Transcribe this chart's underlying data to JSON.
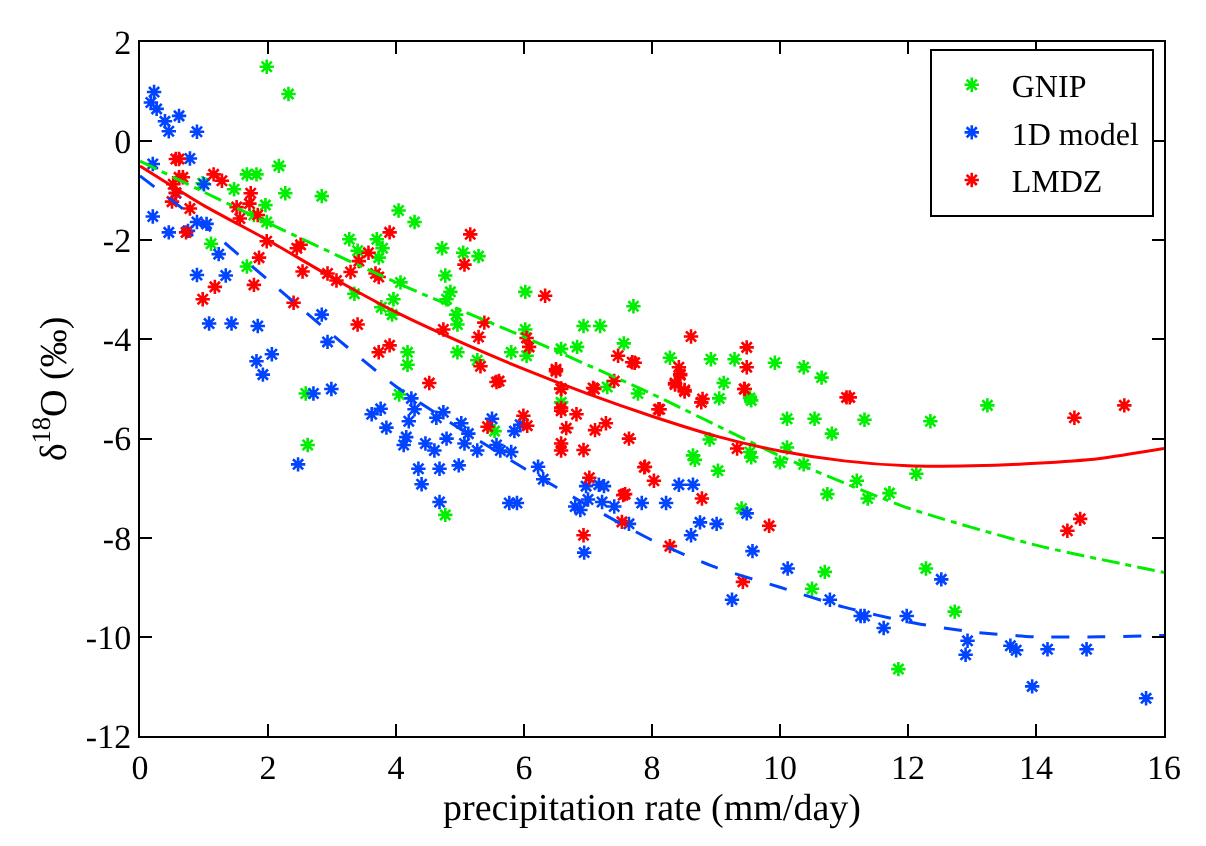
{
  "chart_data": {
    "type": "scatter",
    "xlabel": "precipitation rate (mm/day)",
    "ylabel": "δ$^{18}$O (‰)",
    "xlim": [
      0,
      16
    ],
    "ylim": [
      -12,
      2
    ],
    "xticks": [
      0,
      2,
      4,
      6,
      8,
      10,
      12,
      14,
      16
    ],
    "yticks": [
      -12,
      -10,
      -8,
      -6,
      -4,
      -2,
      0,
      2
    ],
    "legend": "top right",
    "series": [
      {
        "name": "GNIP",
        "color": "#00ee00",
        "marker": "cross",
        "x": [
          1.98,
          2.32,
          2.17,
          1.67,
          1.82,
          0.98,
          1.47,
          1.96,
          2.27,
          2.84,
          1.78,
          1.98,
          1.11,
          1.67,
          3.27,
          3.4,
          3.7,
          3.79,
          3.73,
          4.04,
          4.29,
          3.35,
          3.96,
          4.07,
          3.77,
          3.94,
          4.72,
          5.05,
          5.29,
          4.77,
          4.85,
          4.79,
          4.94,
          4.96,
          6.02,
          6.02,
          5.8,
          4.96,
          4.18,
          4.18,
          4.05,
          5.27,
          6.04,
          6.58,
          6.83,
          6.93,
          7.19,
          7.56,
          7.71,
          7.78,
          2.59,
          6.58,
          2.62,
          4.77,
          5.54,
          7.3,
          8.28,
          8.92,
          9.29,
          9.12,
          10.37,
          10.65,
          9.53,
          9.92,
          9.05,
          9.55,
          10.11,
          10.54,
          10.81,
          11.32,
          12.35,
          13.24,
          8.9,
          8.64,
          8.67,
          9.53,
          9.55,
          10.11,
          10.0,
          10.37,
          9.03,
          11.2,
          12.13,
          10.74,
          11.37,
          11.71,
          9.4,
          10.7,
          10.5,
          12.28,
          12.73,
          11.85
        ],
        "values": [
          1.5,
          0.95,
          -0.5,
          -0.67,
          -0.67,
          -0.85,
          -0.97,
          -1.29,
          -1.05,
          -1.11,
          -1.49,
          -1.63,
          -2.07,
          -2.53,
          -1.98,
          -2.21,
          -1.98,
          -2.16,
          -2.35,
          -1.4,
          -1.63,
          -3.08,
          -3.19,
          -2.85,
          -3.35,
          -3.5,
          -2.16,
          -2.25,
          -2.32,
          -2.71,
          -3.04,
          -3.19,
          -3.5,
          -3.7,
          -3.04,
          -3.8,
          -4.26,
          -4.26,
          -4.26,
          -4.51,
          -5.11,
          -4.42,
          -4.33,
          -4.19,
          -4.15,
          -3.73,
          -3.73,
          -4.08,
          -3.33,
          -5.09,
          -5.09,
          -5.27,
          -6.13,
          -7.54,
          -5.85,
          -4.96,
          -4.37,
          -4.4,
          -4.4,
          -4.88,
          -4.56,
          -4.77,
          -5.18,
          -4.47,
          -5.19,
          -5.23,
          -5.6,
          -5.6,
          -5.9,
          -5.62,
          -5.65,
          -5.33,
          -6.02,
          -6.34,
          -6.43,
          -6.27,
          -6.38,
          -6.18,
          -6.48,
          -6.52,
          -6.65,
          -6.85,
          -6.71,
          -7.12,
          -7.21,
          -7.1,
          -7.41,
          -8.69,
          -9.03,
          -8.62,
          -9.49,
          -10.65
        ]
      },
      {
        "name": "1D model",
        "color": "#0044ff",
        "marker": "cross",
        "x": [
          0.17,
          0.22,
          0.26,
          0.39,
          0.45,
          0.61,
          0.89,
          0.2,
          0.78,
          1.0,
          0.2,
          0.45,
          0.75,
          0.89,
          1.04,
          1.23,
          0.89,
          1.34,
          1.08,
          1.43,
          1.84,
          2.84,
          2.93,
          1.82,
          2.06,
          1.92,
          0.56,
          2.71,
          2.99,
          2.47,
          3.62,
          3.76,
          3.85,
          4.24,
          4.2,
          4.29,
          4.16,
          4.12,
          4.46,
          4.6,
          4.63,
          4.79,
          4.74,
          4.35,
          4.68,
          4.4,
          4.68,
          4.98,
          5.02,
          5.13,
          5.07,
          5.27,
          5.5,
          5.57,
          5.63,
          5.8,
          5.85,
          5.94,
          5.77,
          5.89,
          6.22,
          6.3,
          6.8,
          6.88,
          6.97,
          7.0,
          6.94,
          7.17,
          7.25,
          7.22,
          7.41,
          7.64,
          7.84,
          8.22,
          8.42,
          8.64,
          8.61,
          8.75,
          9.01,
          9.48,
          9.57,
          9.25,
          10.12,
          10.78,
          11.26,
          11.32,
          11.62,
          11.98,
          12.52,
          12.93,
          12.9,
          13.6,
          13.69,
          14.18,
          14.79,
          13.94,
          15.72
        ],
        "values": [
          0.78,
          0.99,
          0.65,
          0.4,
          0.2,
          0.51,
          0.19,
          -0.46,
          -0.35,
          -0.87,
          -1.52,
          -1.84,
          -1.81,
          -1.63,
          -1.67,
          -2.28,
          -2.7,
          -2.71,
          -3.68,
          -3.68,
          -3.73,
          -3.5,
          -4.05,
          -4.44,
          -4.3,
          -4.71,
          -1.05,
          -5.09,
          -5.0,
          -6.52,
          -5.51,
          -5.4,
          -5.78,
          -5.19,
          -5.65,
          -5.41,
          -5.97,
          -6.13,
          -6.1,
          -6.24,
          -5.58,
          -6.0,
          -5.47,
          -6.61,
          -6.61,
          -6.92,
          -7.28,
          -6.54,
          -5.69,
          -5.9,
          -6.1,
          -6.24,
          -5.6,
          -6.13,
          -6.24,
          -6.27,
          -5.85,
          -5.72,
          -7.3,
          -7.3,
          -6.57,
          -6.82,
          -7.37,
          -7.44,
          -6.96,
          -7.23,
          -8.3,
          -6.93,
          -6.96,
          -7.28,
          -7.37,
          -7.72,
          -7.3,
          -7.3,
          -6.93,
          -6.93,
          -7.95,
          -7.69,
          -7.72,
          -7.51,
          -8.27,
          -9.25,
          -8.62,
          -9.25,
          -9.58,
          -9.58,
          -9.82,
          -9.58,
          -8.84,
          -10.08,
          -10.36,
          -10.18,
          -10.27,
          -10.25,
          -10.25,
          -11.0,
          -11.24
        ]
      },
      {
        "name": "LMDZ",
        "color": "#ff0000",
        "marker": "cross",
        "x": [
          0.56,
          0.61,
          0.61,
          0.67,
          0.52,
          0.56,
          0.5,
          0.78,
          1.15,
          1.28,
          1.73,
          1.71,
          1.51,
          1.56,
          1.84,
          1.98,
          1.86,
          1.78,
          1.17,
          0.98,
          0.72,
          2.51,
          2.45,
          2.54,
          2.4,
          2.93,
          3.07,
          3.29,
          3.42,
          3.57,
          3.68,
          3.73,
          3.9,
          3.4,
          3.73,
          3.9,
          4.52,
          4.74,
          5.16,
          5.07,
          5.38,
          5.29,
          5.61,
          6.04,
          6.08,
          6.33,
          6.5,
          6.58,
          7.08,
          7.47,
          7.69,
          7.41,
          5.32,
          5.57,
          5.43,
          5.99,
          6.05,
          6.5,
          6.58,
          6.58,
          6.58,
          6.66,
          6.82,
          6.58,
          6.58,
          6.93,
          7.02,
          7.1,
          7.11,
          7.28,
          7.64,
          7.73,
          7.88,
          8.03,
          8.12,
          7.55,
          7.53,
          6.93,
          8.61,
          8.36,
          8.44,
          8.51,
          8.42,
          9.48,
          9.48,
          8.79,
          9.45,
          11.04,
          11.09,
          8.44,
          8.36,
          8.51,
          8.1,
          8.77,
          9.44,
          7.89,
          7.58,
          8.78,
          9.33,
          9.83,
          8.28,
          9.42,
          14.6,
          15.38,
          14.49,
          14.69
        ],
        "values": [
          -0.36,
          -0.36,
          -0.73,
          -0.73,
          -0.87,
          -1.04,
          -1.22,
          -1.36,
          -0.67,
          -0.8,
          -1.05,
          -1.26,
          -1.33,
          -1.56,
          -1.49,
          -2.02,
          -2.35,
          -2.9,
          -2.94,
          -3.19,
          -1.84,
          -2.09,
          -2.16,
          -2.63,
          -3.26,
          -2.67,
          -2.81,
          -2.64,
          -2.42,
          -2.25,
          -2.67,
          -2.74,
          -1.84,
          -3.7,
          -4.26,
          -4.12,
          -4.88,
          -3.8,
          -1.88,
          -2.49,
          -3.66,
          -3.95,
          -4.84,
          -3.97,
          -4.15,
          -3.12,
          -4.6,
          -4.99,
          -4.98,
          -4.33,
          -4.46,
          -4.84,
          -4.54,
          -4.86,
          -5.76,
          -5.54,
          -5.74,
          -4.64,
          -5.0,
          -5.38,
          -5.44,
          -5.79,
          -5.51,
          -6.1,
          -6.24,
          -6.23,
          -6.79,
          -5.0,
          -5.83,
          -5.69,
          -6.0,
          -4.47,
          -6.58,
          -6.85,
          -5.41,
          -7.14,
          -7.68,
          -7.95,
          -3.94,
          -4.88,
          -4.7,
          -5.02,
          -4.56,
          -4.16,
          -4.56,
          -5.2,
          -5.0,
          -5.17,
          -5.17,
          -4.72,
          -4.91,
          -5.05,
          -5.41,
          -5.27,
          -5.0,
          -6.57,
          -7.12,
          -7.21,
          -6.2,
          -7.76,
          -8.17,
          -8.89,
          -5.58,
          -5.33,
          -7.86,
          -7.62
        ]
      },
      {
        "color": "#00ee00",
        "type": "line",
        "marker": "none",
        "line_style": "dashdot",
        "x": [
          0,
          2,
          4,
          6,
          8,
          10,
          12,
          14,
          16
        ],
        "values": [
          -0.4,
          -1.65,
          -2.85,
          -3.95,
          -5.1,
          -6.35,
          -7.4,
          -8.15,
          -8.7
        ]
      },
      {
        "color": "#0044ff",
        "type": "line",
        "marker": "none",
        "line_style": "dashed",
        "x": [
          0,
          1,
          2,
          3,
          4,
          5,
          6,
          7,
          8,
          9,
          10,
          11,
          12,
          13,
          14,
          15,
          16
        ],
        "values": [
          -0.7,
          -1.7,
          -2.8,
          -3.9,
          -4.95,
          -5.8,
          -6.6,
          -7.35,
          -8.05,
          -8.6,
          -9.0,
          -9.4,
          -9.7,
          -9.9,
          -10.0,
          -10.0,
          -9.97
        ]
      },
      {
        "color": "#ff0000",
        "type": "line",
        "marker": "none",
        "line_style": "solid",
        "x": [
          0,
          1,
          2,
          3,
          4,
          5,
          6,
          7,
          8,
          9,
          10,
          11,
          12,
          13,
          14,
          15,
          16
        ],
        "values": [
          -0.5,
          -1.3,
          -2.0,
          -2.75,
          -3.45,
          -4.05,
          -4.6,
          -5.1,
          -5.55,
          -5.95,
          -6.25,
          -6.45,
          -6.55,
          -6.55,
          -6.5,
          -6.4,
          -6.2
        ]
      }
    ]
  }
}
